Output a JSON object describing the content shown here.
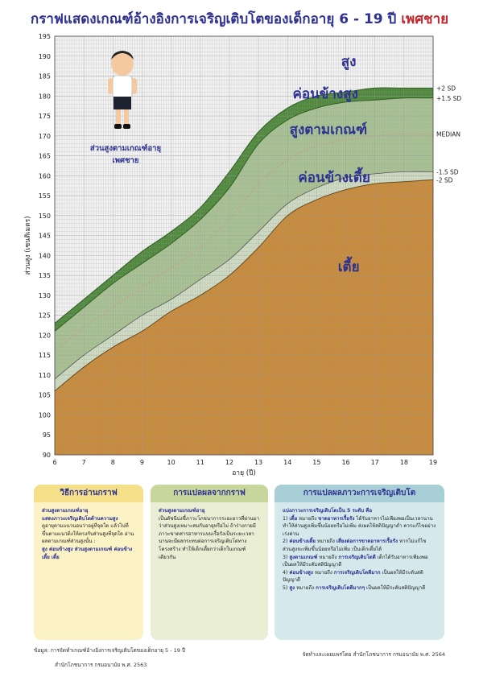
{
  "title": {
    "main": "กราฟแสดงเกณฑ์อ้างอิงการเจริญเติบโตของเด็กอายุ 6 - 19 ปี",
    "sex": "เพศชาย"
  },
  "chart_data": {
    "type": "area",
    "xlabel": "อายุ (ปี)",
    "ylabel": "ส่วนสูง (เซนติเมตร)",
    "xlim": [
      6,
      19
    ],
    "ylim": [
      90,
      195
    ],
    "x_ticks": [
      6,
      7,
      8,
      9,
      10,
      11,
      12,
      13,
      14,
      15,
      16,
      17,
      18,
      19
    ],
    "y_ticks": [
      90,
      95,
      100,
      105,
      110,
      115,
      120,
      125,
      130,
      135,
      140,
      145,
      150,
      155,
      160,
      165,
      170,
      175,
      180,
      185,
      190,
      195
    ],
    "grid": true,
    "x": [
      6,
      7,
      8,
      9,
      10,
      11,
      12,
      13,
      14,
      15,
      16,
      17,
      18,
      19
    ],
    "series": [
      {
        "name": "+2 SD",
        "values": [
          123,
          129,
          135,
          141,
          146,
          152,
          161,
          171,
          177,
          180,
          181,
          182,
          182,
          182
        ]
      },
      {
        "name": "+1.5 SD",
        "values": [
          121,
          127,
          133,
          138,
          143,
          149,
          157,
          168,
          174,
          177,
          178.5,
          179,
          179.5,
          179.5
        ]
      },
      {
        "name": "MEDIAN",
        "values": [
          116,
          122,
          127,
          132,
          137,
          142,
          149,
          158,
          164,
          167.5,
          169,
          170,
          170.5,
          170.5
        ]
      },
      {
        "name": "-1.5 SD",
        "values": [
          109,
          115,
          120,
          125,
          129,
          134,
          139,
          146,
          153,
          157,
          159.5,
          160.5,
          161,
          161
        ]
      },
      {
        "name": "-2 SD",
        "values": [
          106,
          112,
          117,
          121,
          126,
          130,
          135,
          142,
          150,
          154,
          156.5,
          158,
          158.5,
          159
        ]
      }
    ],
    "zones": {
      "very_tall": "สูง",
      "fairly_tall": "ค่อนข้างสูง",
      "normal": "สูงตามเกณฑ์",
      "fairly_short": "ค่อนข้างเตี้ย",
      "short": "เตี้ย"
    },
    "inset_caption": [
      "ส่วนสูงตามเกณฑ์อายุ",
      "เพศชาย"
    ],
    "colors": {
      "green_band": "#4f8a3c",
      "normal_band": "#a9c293",
      "short_fill": "#c98b3a",
      "grid_bg": "#f2f2f2",
      "grid_line": "#9a9a9a",
      "zone_text": "#2e3192"
    }
  },
  "boxes": [
    {
      "header": "วิธีการอ่านกราฟ",
      "body": "<b>ส่วนสูงตามเกณฑ์อายุ<br>แสดงภาวะเจริญเติบโตด้านความสูง</b><br>ดูอายุตามแนวนอนว่าอยู่ที่จุดใด แล้วไปที่ขึ้นตามแนวดิ่งให้ตรงกับส่วนสูงที่จุดใด อ่านผลตามเกณฑ์ส่วนสูงนั้น :<br><b>สูง ค่อนข้างสูง ส่วนสูงตามเกณฑ์ ค่อนข้างเตี้ย เตี้ย</b>"
    },
    {
      "header": "การแปลผลจากกราฟ",
      "body": "<b>ส่วนสูงตามเกณฑ์อายุ</b><br>เป็นดัชนีบ่งชี้ภาวะโภชนาการระยะยาวที่ผ่านมาว่าส่วนสูงเหมาะสมกับอายุหรือไม่ ถ้าร่างกายมีภาวะขาดสารอาหารแบบเรื้อรังเป็นระยะเวลานานจะมีผลกระทบต่อการเจริญเติบโตทางโครงสร้าง ทำให้เด็กเตี้ยกว่าเด็กในเกณฑ์เดียวกัน"
    },
    {
      "header": "การแปลผลภาวะการเจริญเติบโต",
      "body": "<b>แบ่งภาวะการเจริญเติบโตเป็น 5 ระดับ คือ</b><br>1) <b>เตี้ย</b> หมายถึง <b>ขาดอาหารเรื้อรัง</b> ได้รับอาหารไม่เพียงพอเป็นเวลานาน ทำให้ส่วนสูงเพิ่มขึ้นน้อยหรือไม่เพิ่ม ส่งผลให้สติปัญญาต่ำ ควรแก้ไขอย่างเร่งด่วน<br>2) <b>ค่อนข้างเตี้ย</b> หมายถึง <b>เสี่ยงต่อการขาดอาหารเรื้อรัง</b> หากไม่แก้ไข ส่วนสูงจะเพิ่มขึ้นน้อยหรือไม่เพิ่ม เป็นเด็กเตี้ยได้<br>3) <b>สูงตามเกณฑ์</b> หมายถึง <b>การเจริญเติบโตดี</b> เด็กได้รับอาหารเพียงพอ เป็นผลให้มีระดับสติปัญญาดี<br>4) <b>ค่อนข้างสูง</b> หมายถึง <b>การเจริญเติบโตดีมาก</b> เป็นผลให้มีระดับสติปัญญาดี<br>5) <b>สูง</b> หมายถึง <b>การเจริญเติบโตดีมากๆ</b> เป็นผลให้มีระดับสติปัญญาดี"
    }
  ],
  "footer": {
    "source_line1": "ข้อมูล: การจัดทำเกณฑ์อ้างอิงการเจริญเติบโตของเด็กอายุ 5 - 19 ปี",
    "source_line2": "สำนักโภชนาการ กรมอนามัย พ.ศ. 2563",
    "publisher": "จัดทำและเผยแพร่โดย สำนักโภชนาการ กรมอนามัย พ.ศ. 2564"
  }
}
